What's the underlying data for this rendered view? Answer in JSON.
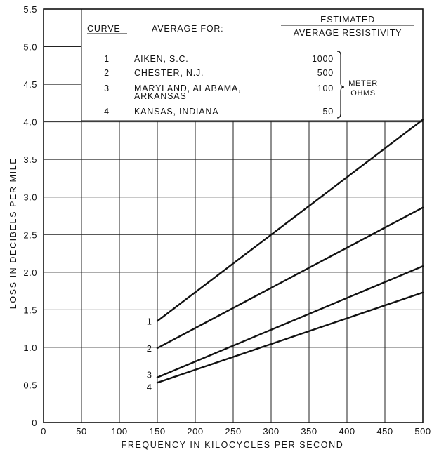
{
  "chart_data": {
    "type": "line",
    "title": "",
    "xlabel": "FREQUENCY IN KILOCYCLES PER SECOND",
    "ylabel": "LOSS IN DECIBELS PER MILE",
    "xlim": [
      0,
      500
    ],
    "ylim": [
      0,
      5.5
    ],
    "xticks": [
      "0",
      "50",
      "100",
      "150",
      "200",
      "250",
      "300",
      "350",
      "400",
      "450",
      "500"
    ],
    "yticks": [
      "0",
      "0.5",
      "1.0",
      "1.5",
      "2.0",
      "2.5",
      "3.0",
      "3.5",
      "4.0",
      "4.5",
      "5.0",
      "5.5"
    ],
    "grid": true,
    "series": [
      {
        "name": "1",
        "x": [
          150,
          500
        ],
        "y": [
          1.35,
          4.03
        ]
      },
      {
        "name": "2",
        "x": [
          150,
          500
        ],
        "y": [
          0.99,
          2.86
        ]
      },
      {
        "name": "3",
        "x": [
          150,
          500
        ],
        "y": [
          0.6,
          2.08
        ]
      },
      {
        "name": "4",
        "x": [
          150,
          500
        ],
        "y": [
          0.53,
          1.73
        ]
      }
    ],
    "legend": {
      "header_curve": "CURVE",
      "header_average": "AVERAGE FOR:",
      "header_resistivity_line1": "ESTIMATED",
      "header_resistivity_line2": "AVERAGE RESISTIVITY",
      "unit_line1": "METER",
      "unit_line2": "OHMS",
      "rows": [
        {
          "curve": "1",
          "place": "AIKEN, S.C.",
          "place2": "",
          "resistivity": "1000"
        },
        {
          "curve": "2",
          "place": "CHESTER, N.J.",
          "place2": "",
          "resistivity": "500"
        },
        {
          "curve": "3",
          "place": "MARYLAND, ALABAMA,",
          "place2": "ARKANSAS",
          "resistivity": "100"
        },
        {
          "curve": "4",
          "place": "KANSAS, INDIANA",
          "place2": "",
          "resistivity": "50"
        }
      ]
    }
  }
}
